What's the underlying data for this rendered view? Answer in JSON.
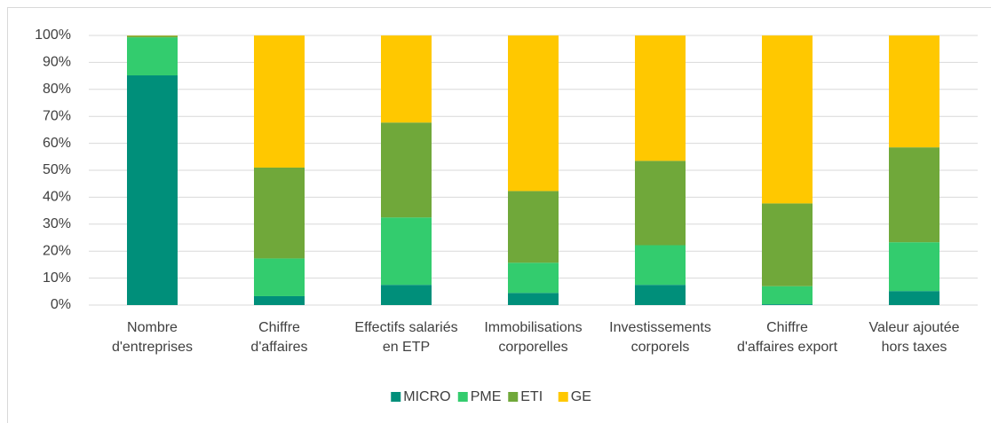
{
  "chart_data": {
    "type": "stacked_bar_100",
    "categories": [
      [
        "Nombre",
        "d'entreprises"
      ],
      [
        "Chiffre",
        "d'affaires"
      ],
      [
        "Effectifs salariés",
        "en ETP"
      ],
      [
        "Immobilisations",
        "corporelles"
      ],
      [
        "Investissements",
        "corporels"
      ],
      [
        "Chiffre",
        "d'affaires export"
      ],
      [
        "Valeur ajoutée",
        "hors taxes"
      ]
    ],
    "series": [
      {
        "name": "MICRO",
        "color": "#008f7a",
        "values": [
          85.2,
          3.3,
          7.5,
          4.5,
          7.5,
          0.3,
          5.2
        ]
      },
      {
        "name": "PME",
        "color": "#33cc6e",
        "values": [
          14.1,
          14,
          25,
          11.2,
          14.7,
          6.7,
          18.1
        ]
      },
      {
        "name": "ETI",
        "color": "#70a83a",
        "values": [
          0.6,
          33.7,
          35.2,
          26.6,
          31.3,
          30.7,
          35.2
        ]
      },
      {
        "name": "GE",
        "color": "#ffc800",
        "values": [
          0.1,
          49,
          32.3,
          57.7,
          46.5,
          62.3,
          41.5
        ]
      }
    ],
    "ylim": [
      0,
      100
    ],
    "yticks": [
      {
        "value": 0,
        "label": "0%"
      },
      {
        "value": 10,
        "label": "10%"
      },
      {
        "value": 20,
        "label": "20%"
      },
      {
        "value": 30,
        "label": "30%"
      },
      {
        "value": 40,
        "label": "40%"
      },
      {
        "value": 50,
        "label": "50%"
      },
      {
        "value": 60,
        "label": "60%"
      },
      {
        "value": 70,
        "label": "70%"
      },
      {
        "value": 80,
        "label": "80%"
      },
      {
        "value": 90,
        "label": "90%"
      },
      {
        "value": 100,
        "label": "100%"
      }
    ],
    "grid": true,
    "legend": "bottom"
  }
}
